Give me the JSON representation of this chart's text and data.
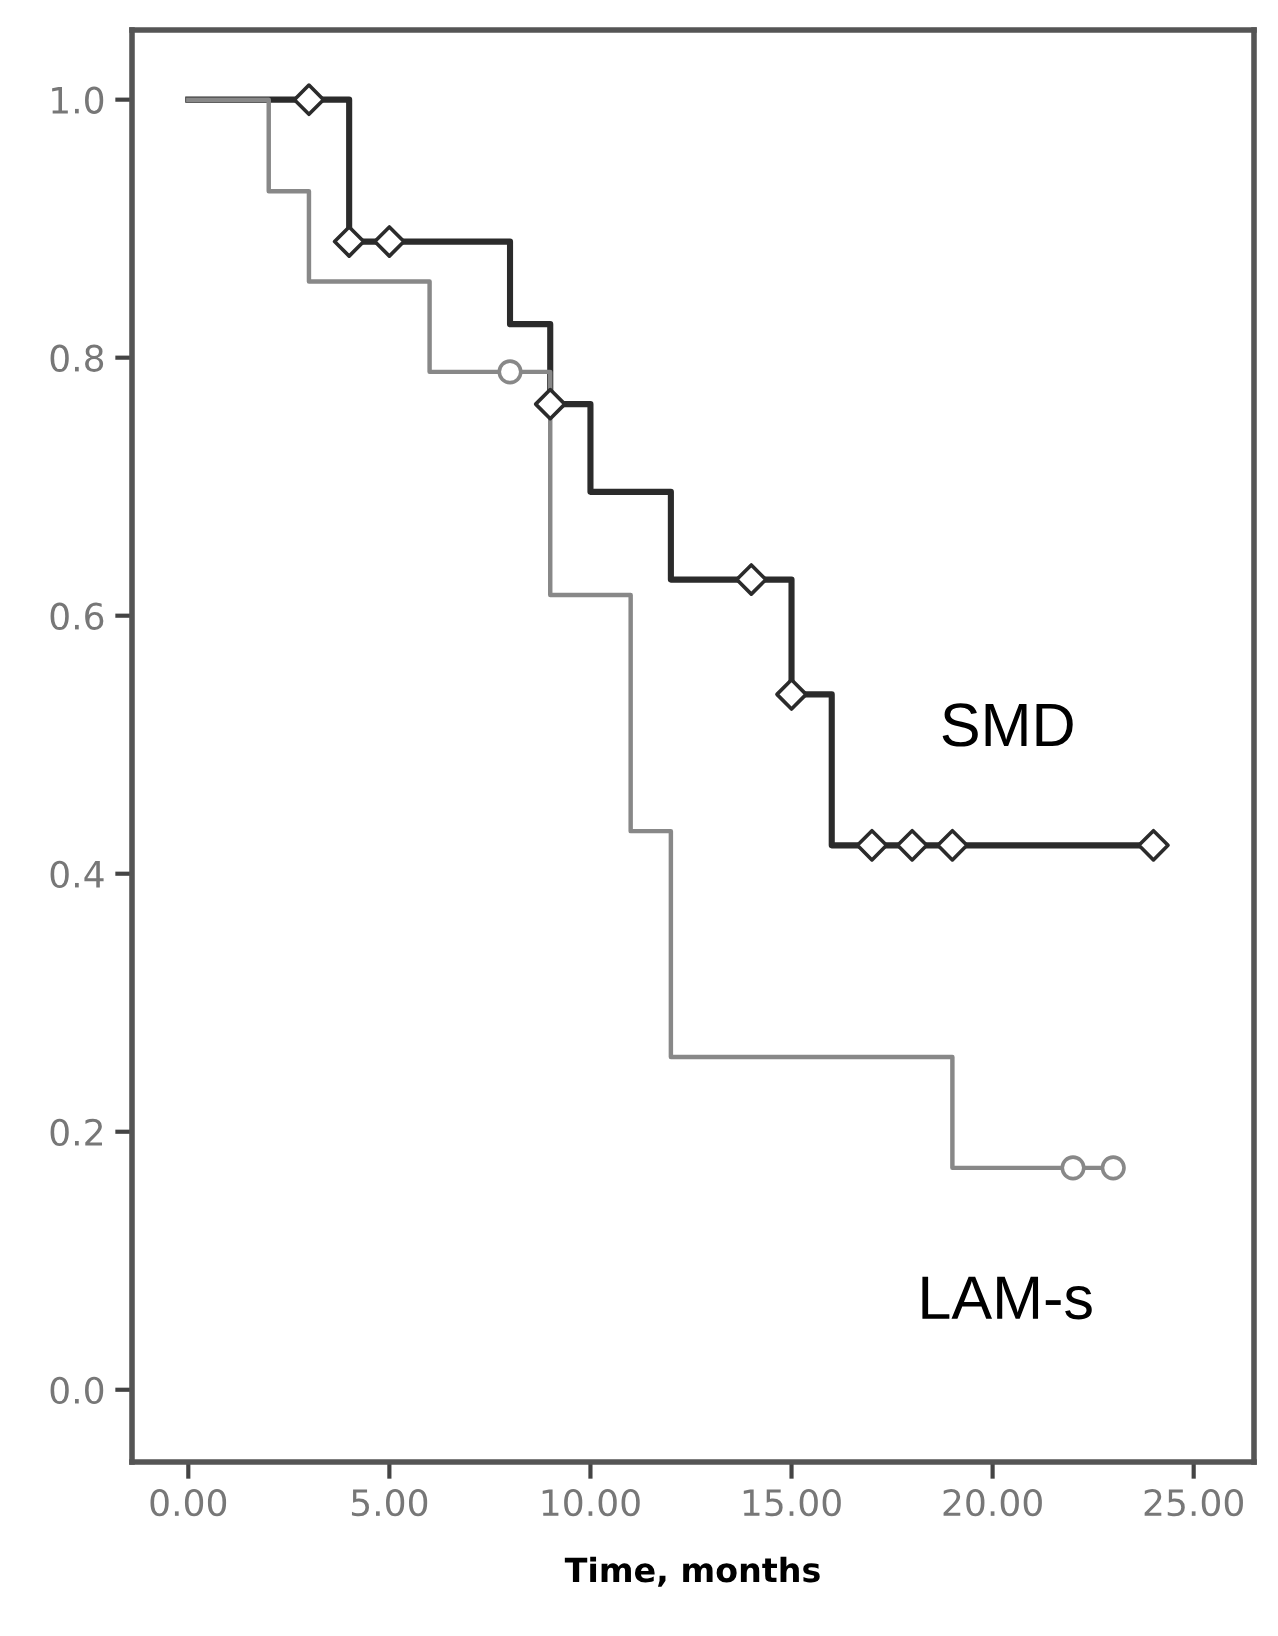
{
  "chart_data": {
    "type": "step",
    "xlabel": "Time, months",
    "xlim": [
      -1.4,
      26.5
    ],
    "ylim": [
      -0.056,
      1.054
    ],
    "xticks": [
      {
        "value": 0,
        "label": "0.00"
      },
      {
        "value": 5,
        "label": "5.00"
      },
      {
        "value": 10,
        "label": "10.00"
      },
      {
        "value": 15,
        "label": "15.00"
      },
      {
        "value": 20,
        "label": "20.00"
      },
      {
        "value": 25,
        "label": "25.00"
      }
    ],
    "yticks": [
      {
        "value": 0,
        "label": "0.0"
      },
      {
        "value": 0.2,
        "label": "0.2"
      },
      {
        "value": 0.4,
        "label": "0.4"
      },
      {
        "value": 0.6,
        "label": "0.6"
      },
      {
        "value": 0.8,
        "label": "0.8"
      },
      {
        "value": 1.0,
        "label": "1.0"
      }
    ],
    "grid": false,
    "legend": false,
    "series": [
      {
        "name": "SMD",
        "color": "#2b2b2b",
        "x": [
          0,
          4,
          8,
          9,
          10,
          12,
          15,
          16,
          24
        ],
        "values": [
          1.0,
          0.89,
          0.826,
          0.764,
          0.696,
          0.628,
          0.539,
          0.422,
          0.422
        ]
      },
      {
        "name": "LAM-s",
        "color": "#888888",
        "x": [
          0,
          2,
          3,
          6,
          9,
          11,
          12,
          19,
          23
        ],
        "values": [
          1.0,
          0.929,
          0.859,
          0.789,
          0.616,
          0.433,
          0.258,
          0.172,
          0.172
        ]
      },
      {
        "type": "scatter",
        "marker": "diamond",
        "color": "#2b2b2b",
        "x": [
          3,
          4,
          5,
          9,
          14,
          15,
          17,
          18,
          19,
          24
        ],
        "values": [
          1.0,
          0.89,
          0.89,
          0.764,
          0.628,
          0.539,
          0.422,
          0.422,
          0.422,
          0.422
        ]
      },
      {
        "type": "scatter",
        "marker": "circle",
        "color": "#888888",
        "x": [
          8,
          22,
          23
        ],
        "values": [
          0.789,
          0.172,
          0.172
        ]
      }
    ]
  }
}
